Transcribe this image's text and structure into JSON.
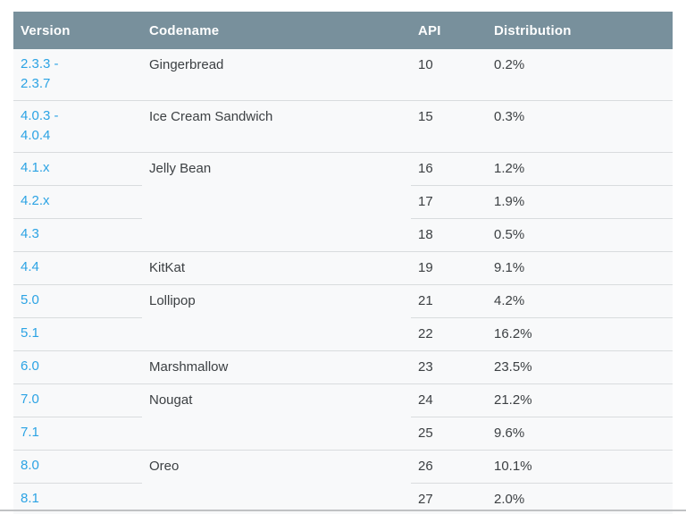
{
  "colors": {
    "header_bg": "#78909c",
    "header_text": "#ffffff",
    "row_bg": "#f8f9fa",
    "border_color": "#d9dcde",
    "link_color": "#2ba3e4",
    "text_color": "#3c4043",
    "bottom_rule": "#c0c2c4",
    "page_bg": "#ffffff"
  },
  "table": {
    "columns": [
      "Version",
      "Codename",
      "API",
      "Distribution"
    ],
    "groups": [
      {
        "codename": "Gingerbread",
        "rows": [
          {
            "version": "2.3.3 -\n2.3.7",
            "api": "10",
            "distribution": "0.2%"
          }
        ]
      },
      {
        "codename": "Ice Cream Sandwich",
        "rows": [
          {
            "version": "4.0.3 -\n4.0.4",
            "api": "15",
            "distribution": "0.3%"
          }
        ]
      },
      {
        "codename": "Jelly Bean",
        "rows": [
          {
            "version": "4.1.x",
            "api": "16",
            "distribution": "1.2%"
          },
          {
            "version": "4.2.x",
            "api": "17",
            "distribution": "1.9%"
          },
          {
            "version": "4.3",
            "api": "18",
            "distribution": "0.5%"
          }
        ]
      },
      {
        "codename": "KitKat",
        "rows": [
          {
            "version": "4.4",
            "api": "19",
            "distribution": "9.1%"
          }
        ]
      },
      {
        "codename": "Lollipop",
        "rows": [
          {
            "version": "5.0",
            "api": "21",
            "distribution": "4.2%"
          },
          {
            "version": "5.1",
            "api": "22",
            "distribution": "16.2%"
          }
        ]
      },
      {
        "codename": "Marshmallow",
        "rows": [
          {
            "version": "6.0",
            "api": "23",
            "distribution": "23.5%"
          }
        ]
      },
      {
        "codename": "Nougat",
        "rows": [
          {
            "version": "7.0",
            "api": "24",
            "distribution": "21.2%"
          },
          {
            "version": "7.1",
            "api": "25",
            "distribution": "9.6%"
          }
        ]
      },
      {
        "codename": "Oreo",
        "rows": [
          {
            "version": "8.0",
            "api": "26",
            "distribution": "10.1%"
          },
          {
            "version": "8.1",
            "api": "27",
            "distribution": "2.0%"
          }
        ]
      }
    ]
  }
}
